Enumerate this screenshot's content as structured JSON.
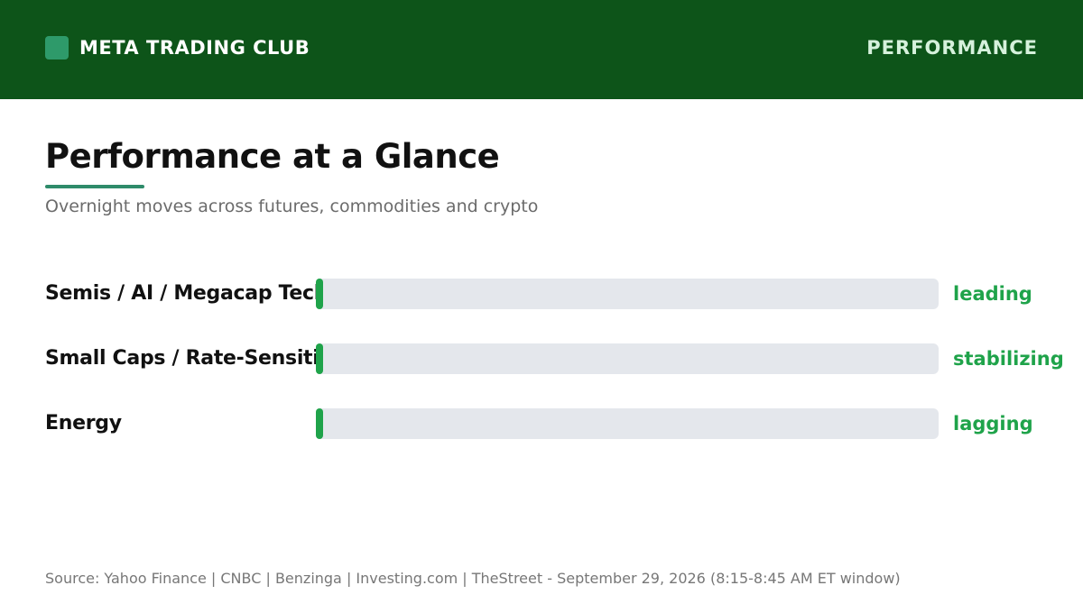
{
  "header": {
    "brand": "META TRADING CLUB",
    "section": "PERFORMANCE",
    "logo_icon": "square-logo-icon"
  },
  "title": "Performance at a Glance",
  "subtitle": "Overnight moves across futures, commodities and crypto",
  "chart_data": {
    "type": "bar",
    "orientation": "horizontal",
    "title": "Performance at a Glance",
    "subtitle": "Overnight moves across futures, commodities and crypto",
    "categories": [
      "Semis / AI / Megacap Tech",
      "Small Caps / Rate-Sensitive",
      "Energy"
    ],
    "values": [
      0.01,
      0.01,
      0.01
    ],
    "status_labels": [
      "leading",
      "stabilizing",
      "lagging"
    ],
    "xlim": [
      0,
      1
    ],
    "grid": false,
    "bar_color": "#1fa34a",
    "track_color": "#e4e7ec",
    "status_color": "#1fa34a"
  },
  "source": "Source: Yahoo Finance | CNBC | Benzinga | Investing.com | TheStreet - September 29, 2026 (8:15-8:45 AM ET window)",
  "colors": {
    "header_bg": "#0d5419",
    "accent": "#2e8b6a",
    "positive": "#1fa34a"
  }
}
